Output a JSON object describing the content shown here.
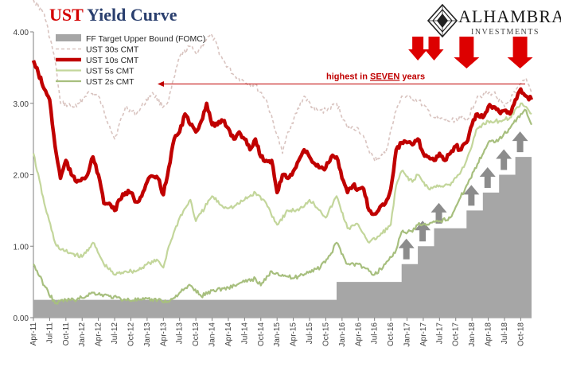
{
  "header": {
    "title_prefix": "UST",
    "title_rest": "Yield Curve",
    "logo_name": "ALHAMBRA",
    "logo_sub": "INVESTMENTS",
    "logo_icon": "diamond-mosaic-icon"
  },
  "annotation": {
    "pre": "highest in ",
    "emph": "SEVEN",
    "post": " years",
    "color": "#c00000"
  },
  "chart_data": {
    "type": "line",
    "ylim": [
      0,
      4
    ],
    "yticks": [
      "0.00",
      "1.00",
      "2.00",
      "3.00",
      "4.00"
    ],
    "x_start": "2011-04",
    "x_end": "2018-12",
    "xticks": [
      "Apr-11",
      "Jul-11",
      "Oct-11",
      "Jan-12",
      "Apr-12",
      "Jul-12",
      "Oct-12",
      "Jan-13",
      "Apr-13",
      "Jul-13",
      "Oct-13",
      "Jan-14",
      "Apr-14",
      "Jul-14",
      "Oct-14",
      "Jan-15",
      "Apr-15",
      "Jul-15",
      "Oct-15",
      "Jan-16",
      "Apr-16",
      "Jul-16",
      "Oct-16",
      "Jan-17",
      "Apr-17",
      "Jul-17",
      "Oct-17",
      "Jan-18",
      "Apr-18",
      "Jul-18",
      "Oct-18"
    ],
    "legend_position": "top-left",
    "series": [
      {
        "name": "FF Target Upper Bound (FOMC)",
        "kind": "area",
        "color": "#a6a6a6",
        "points": [
          [
            "2011-04",
            0.25
          ],
          [
            "2015-12",
            0.25
          ],
          [
            "2015-12",
            0.5
          ],
          [
            "2016-12",
            0.5
          ],
          [
            "2016-12",
            0.75
          ],
          [
            "2017-03",
            0.75
          ],
          [
            "2017-03",
            1.0
          ],
          [
            "2017-06",
            1.0
          ],
          [
            "2017-06",
            1.25
          ],
          [
            "2017-12",
            1.25
          ],
          [
            "2017-12",
            1.5
          ],
          [
            "2018-03",
            1.5
          ],
          [
            "2018-03",
            1.75
          ],
          [
            "2018-06",
            1.75
          ],
          [
            "2018-06",
            2.0
          ],
          [
            "2018-09",
            2.0
          ],
          [
            "2018-09",
            2.25
          ],
          [
            "2018-12",
            2.25
          ]
        ]
      },
      {
        "name": "UST 30s CMT",
        "kind": "dashed",
        "color": "#d9c4c0",
        "points": [
          [
            "2011-04",
            4.45
          ],
          [
            "2011-06",
            4.25
          ],
          [
            "2011-08",
            3.6
          ],
          [
            "2011-09",
            3.0
          ],
          [
            "2011-12",
            2.95
          ],
          [
            "2012-02",
            3.15
          ],
          [
            "2012-04",
            3.1
          ],
          [
            "2012-06",
            2.7
          ],
          [
            "2012-07",
            2.5
          ],
          [
            "2012-09",
            2.95
          ],
          [
            "2012-11",
            2.85
          ],
          [
            "2013-02",
            3.15
          ],
          [
            "2013-04",
            2.95
          ],
          [
            "2013-05",
            3.05
          ],
          [
            "2013-07",
            3.65
          ],
          [
            "2013-09",
            3.8
          ],
          [
            "2013-10",
            3.7
          ],
          [
            "2013-12",
            3.9
          ],
          [
            "2014-01",
            3.95
          ],
          [
            "2014-03",
            3.6
          ],
          [
            "2014-05",
            3.4
          ],
          [
            "2014-07",
            3.3
          ],
          [
            "2014-09",
            3.25
          ],
          [
            "2014-11",
            3.05
          ],
          [
            "2015-01",
            2.55
          ],
          [
            "2015-02",
            2.3
          ],
          [
            "2015-03",
            2.6
          ],
          [
            "2015-06",
            3.1
          ],
          [
            "2015-08",
            2.9
          ],
          [
            "2015-10",
            2.9
          ],
          [
            "2015-12",
            3.0
          ],
          [
            "2016-02",
            2.65
          ],
          [
            "2016-04",
            2.65
          ],
          [
            "2016-07",
            2.2
          ],
          [
            "2016-09",
            2.3
          ],
          [
            "2016-11",
            2.9
          ],
          [
            "2016-12",
            3.1
          ],
          [
            "2017-03",
            3.05
          ],
          [
            "2017-06",
            2.8
          ],
          [
            "2017-09",
            2.75
          ],
          [
            "2017-11",
            2.8
          ],
          [
            "2017-12",
            2.75
          ],
          [
            "2018-02",
            3.1
          ],
          [
            "2018-05",
            3.15
          ],
          [
            "2018-07",
            2.95
          ],
          [
            "2018-09",
            3.15
          ],
          [
            "2018-11",
            3.35
          ],
          [
            "2018-12",
            3.15
          ]
        ]
      },
      {
        "name": "UST 10s CMT",
        "kind": "thick",
        "color": "#c00000",
        "points": [
          [
            "2011-04",
            3.6
          ],
          [
            "2011-06",
            3.2
          ],
          [
            "2011-07",
            3.05
          ],
          [
            "2011-08",
            2.4
          ],
          [
            "2011-09",
            1.95
          ],
          [
            "2011-10",
            2.2
          ],
          [
            "2011-11",
            2.0
          ],
          [
            "2011-12",
            1.9
          ],
          [
            "2012-01",
            1.95
          ],
          [
            "2012-02",
            2.0
          ],
          [
            "2012-03",
            2.25
          ],
          [
            "2012-04",
            2.0
          ],
          [
            "2012-05",
            1.6
          ],
          [
            "2012-06",
            1.6
          ],
          [
            "2012-07",
            1.5
          ],
          [
            "2012-08",
            1.65
          ],
          [
            "2012-09",
            1.75
          ],
          [
            "2012-10",
            1.75
          ],
          [
            "2012-11",
            1.62
          ],
          [
            "2012-12",
            1.7
          ],
          [
            "2013-01",
            1.9
          ],
          [
            "2013-02",
            1.98
          ],
          [
            "2013-03",
            1.95
          ],
          [
            "2013-04",
            1.72
          ],
          [
            "2013-05",
            2.1
          ],
          [
            "2013-06",
            2.5
          ],
          [
            "2013-07",
            2.6
          ],
          [
            "2013-08",
            2.85
          ],
          [
            "2013-09",
            2.7
          ],
          [
            "2013-10",
            2.6
          ],
          [
            "2013-11",
            2.75
          ],
          [
            "2013-12",
            3.0
          ],
          [
            "2014-01",
            2.7
          ],
          [
            "2014-02",
            2.7
          ],
          [
            "2014-03",
            2.75
          ],
          [
            "2014-04",
            2.65
          ],
          [
            "2014-05",
            2.5
          ],
          [
            "2014-06",
            2.6
          ],
          [
            "2014-07",
            2.5
          ],
          [
            "2014-08",
            2.35
          ],
          [
            "2014-09",
            2.5
          ],
          [
            "2014-10",
            2.25
          ],
          [
            "2014-11",
            2.2
          ],
          [
            "2014-12",
            2.2
          ],
          [
            "2015-01",
            1.75
          ],
          [
            "2015-02",
            2.0
          ],
          [
            "2015-03",
            1.95
          ],
          [
            "2015-04",
            2.05
          ],
          [
            "2015-05",
            2.2
          ],
          [
            "2015-06",
            2.35
          ],
          [
            "2015-07",
            2.25
          ],
          [
            "2015-08",
            2.15
          ],
          [
            "2015-09",
            2.1
          ],
          [
            "2015-10",
            2.1
          ],
          [
            "2015-11",
            2.25
          ],
          [
            "2015-12",
            2.25
          ],
          [
            "2016-01",
            1.95
          ],
          [
            "2016-02",
            1.75
          ],
          [
            "2016-03",
            1.85
          ],
          [
            "2016-04",
            1.8
          ],
          [
            "2016-05",
            1.8
          ],
          [
            "2016-06",
            1.5
          ],
          [
            "2016-07",
            1.45
          ],
          [
            "2016-08",
            1.55
          ],
          [
            "2016-09",
            1.6
          ],
          [
            "2016-10",
            1.8
          ],
          [
            "2016-11",
            2.35
          ],
          [
            "2016-12",
            2.45
          ],
          [
            "2017-01",
            2.45
          ],
          [
            "2017-02",
            2.42
          ],
          [
            "2017-03",
            2.5
          ],
          [
            "2017-04",
            2.3
          ],
          [
            "2017-05",
            2.25
          ],
          [
            "2017-06",
            2.2
          ],
          [
            "2017-07",
            2.3
          ],
          [
            "2017-08",
            2.2
          ],
          [
            "2017-09",
            2.3
          ],
          [
            "2017-10",
            2.4
          ],
          [
            "2017-11",
            2.35
          ],
          [
            "2017-12",
            2.45
          ],
          [
            "2018-01",
            2.7
          ],
          [
            "2018-02",
            2.85
          ],
          [
            "2018-03",
            2.8
          ],
          [
            "2018-04",
            2.95
          ],
          [
            "2018-05",
            2.95
          ],
          [
            "2018-06",
            2.88
          ],
          [
            "2018-07",
            2.9
          ],
          [
            "2018-08",
            2.85
          ],
          [
            "2018-09",
            3.05
          ],
          [
            "2018-10",
            3.2
          ],
          [
            "2018-11",
            3.1
          ],
          [
            "2018-12",
            3.05
          ]
        ]
      },
      {
        "name": "UST 5s CMT",
        "kind": "line",
        "color": "#c3d69b",
        "points": [
          [
            "2011-04",
            2.3
          ],
          [
            "2011-06",
            1.6
          ],
          [
            "2011-08",
            1.05
          ],
          [
            "2011-09",
            0.95
          ],
          [
            "2011-11",
            0.9
          ],
          [
            "2012-01",
            0.85
          ],
          [
            "2012-03",
            1.05
          ],
          [
            "2012-05",
            0.75
          ],
          [
            "2012-07",
            0.6
          ],
          [
            "2012-09",
            0.65
          ],
          [
            "2012-11",
            0.65
          ],
          [
            "2013-01",
            0.75
          ],
          [
            "2013-03",
            0.8
          ],
          [
            "2013-04",
            0.7
          ],
          [
            "2013-05",
            1.0
          ],
          [
            "2013-07",
            1.4
          ],
          [
            "2013-09",
            1.65
          ],
          [
            "2013-10",
            1.35
          ],
          [
            "2014-01",
            1.7
          ],
          [
            "2014-03",
            1.55
          ],
          [
            "2014-05",
            1.55
          ],
          [
            "2014-07",
            1.65
          ],
          [
            "2014-09",
            1.75
          ],
          [
            "2014-11",
            1.6
          ],
          [
            "2015-01",
            1.3
          ],
          [
            "2015-03",
            1.5
          ],
          [
            "2015-05",
            1.5
          ],
          [
            "2015-07",
            1.65
          ],
          [
            "2015-09",
            1.5
          ],
          [
            "2015-10",
            1.4
          ],
          [
            "2015-12",
            1.7
          ],
          [
            "2016-02",
            1.25
          ],
          [
            "2016-04",
            1.3
          ],
          [
            "2016-06",
            1.05
          ],
          [
            "2016-08",
            1.15
          ],
          [
            "2016-10",
            1.3
          ],
          [
            "2016-11",
            1.85
          ],
          [
            "2016-12",
            2.05
          ],
          [
            "2017-02",
            1.9
          ],
          [
            "2017-03",
            2.0
          ],
          [
            "2017-05",
            1.8
          ],
          [
            "2017-07",
            1.85
          ],
          [
            "2017-09",
            1.85
          ],
          [
            "2017-11",
            2.05
          ],
          [
            "2017-12",
            2.2
          ],
          [
            "2018-02",
            2.65
          ],
          [
            "2018-04",
            2.75
          ],
          [
            "2018-06",
            2.75
          ],
          [
            "2018-08",
            2.8
          ],
          [
            "2018-10",
            3.0
          ],
          [
            "2018-11",
            2.95
          ],
          [
            "2018-12",
            2.85
          ]
        ]
      },
      {
        "name": "UST 2s CMT",
        "kind": "line",
        "color": "#a7bf7e",
        "points": [
          [
            "2011-04",
            0.75
          ],
          [
            "2011-06",
            0.45
          ],
          [
            "2011-08",
            0.2
          ],
          [
            "2011-10",
            0.25
          ],
          [
            "2011-12",
            0.25
          ],
          [
            "2012-03",
            0.35
          ],
          [
            "2012-06",
            0.3
          ],
          [
            "2012-09",
            0.25
          ],
          [
            "2012-12",
            0.25
          ],
          [
            "2013-03",
            0.25
          ],
          [
            "2013-05",
            0.22
          ],
          [
            "2013-07",
            0.35
          ],
          [
            "2013-09",
            0.45
          ],
          [
            "2013-11",
            0.3
          ],
          [
            "2014-01",
            0.38
          ],
          [
            "2014-04",
            0.42
          ],
          [
            "2014-07",
            0.5
          ],
          [
            "2014-09",
            0.55
          ],
          [
            "2014-10",
            0.45
          ],
          [
            "2014-12",
            0.65
          ],
          [
            "2015-02",
            0.6
          ],
          [
            "2015-04",
            0.55
          ],
          [
            "2015-07",
            0.65
          ],
          [
            "2015-09",
            0.7
          ],
          [
            "2015-11",
            0.9
          ],
          [
            "2015-12",
            1.05
          ],
          [
            "2016-02",
            0.75
          ],
          [
            "2016-04",
            0.75
          ],
          [
            "2016-06",
            0.65
          ],
          [
            "2016-07",
            0.6
          ],
          [
            "2016-09",
            0.75
          ],
          [
            "2016-11",
            0.95
          ],
          [
            "2016-12",
            1.2
          ],
          [
            "2017-02",
            1.2
          ],
          [
            "2017-03",
            1.3
          ],
          [
            "2017-05",
            1.3
          ],
          [
            "2017-07",
            1.35
          ],
          [
            "2017-09",
            1.4
          ],
          [
            "2017-10",
            1.55
          ],
          [
            "2017-12",
            1.85
          ],
          [
            "2018-02",
            2.15
          ],
          [
            "2018-04",
            2.45
          ],
          [
            "2018-06",
            2.5
          ],
          [
            "2018-08",
            2.65
          ],
          [
            "2018-10",
            2.85
          ],
          [
            "2018-11",
            2.9
          ],
          [
            "2018-12",
            2.7
          ]
        ]
      }
    ]
  },
  "markers": {
    "down_arrow_color": "#dd0000",
    "up_arrow_color": "#8c8c8c",
    "down_arrows": [
      "2017-03",
      "2017-06",
      "2017-12",
      "2018-09"
    ],
    "up_arrows": [
      "2016-12",
      "2017-03",
      "2017-06",
      "2017-12",
      "2018-03",
      "2018-06",
      "2018-09"
    ]
  }
}
